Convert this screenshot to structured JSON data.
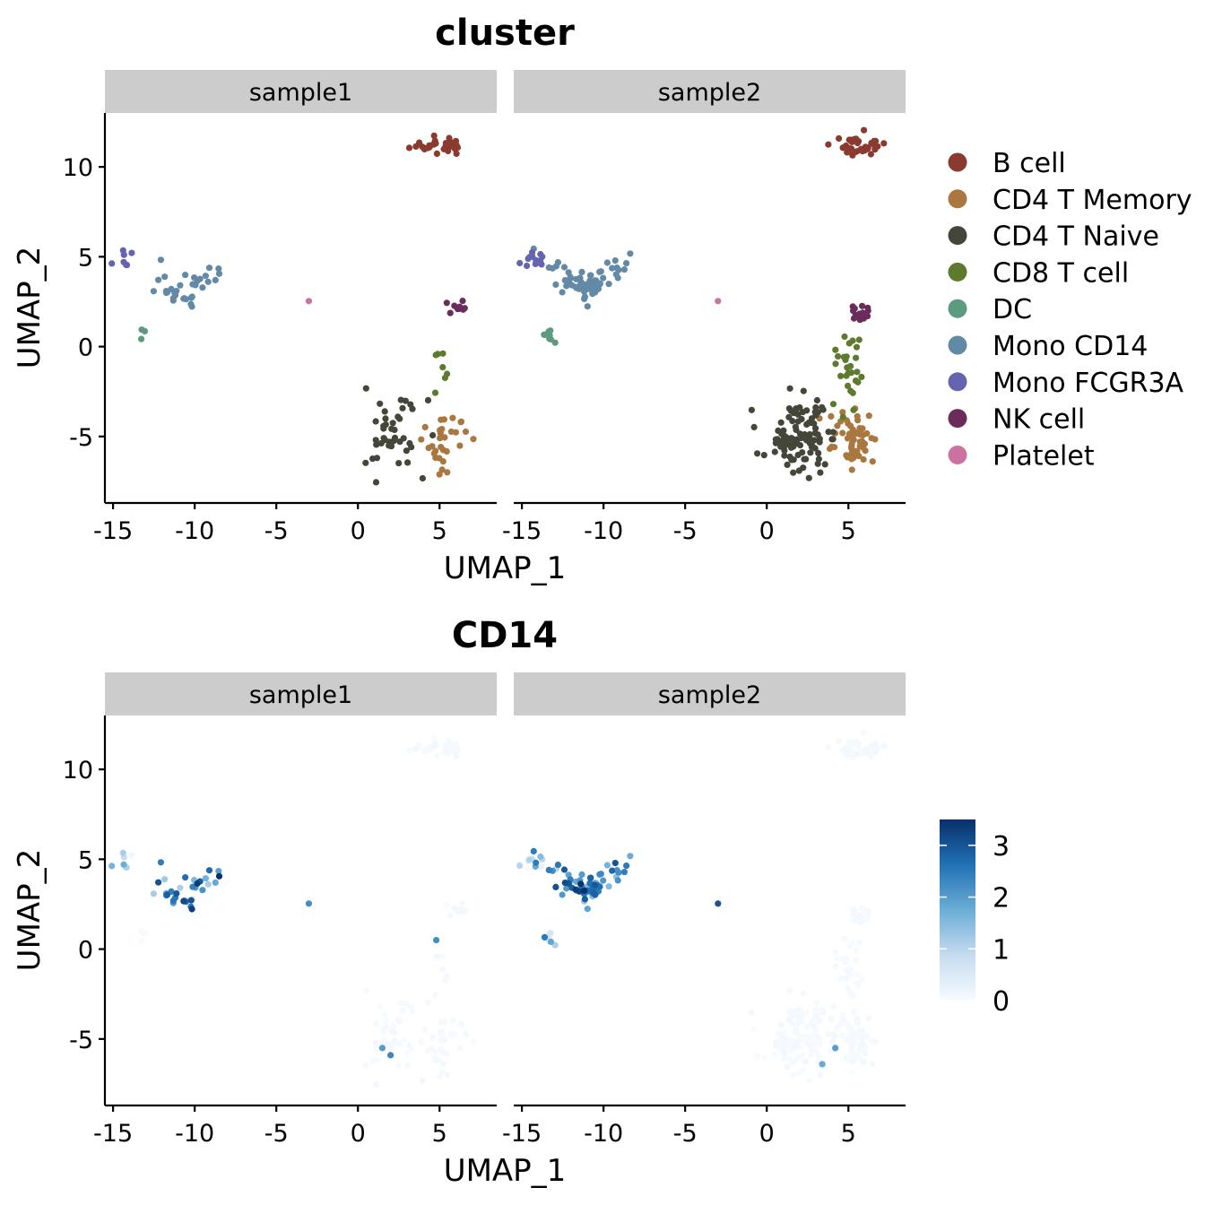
{
  "panels": [
    {
      "title": "cluster",
      "facets": [
        "sample1",
        "sample2"
      ],
      "xlabel": "UMAP_1",
      "ylabel": "UMAP_2"
    },
    {
      "title": "CD14",
      "facets": [
        "sample1",
        "sample2"
      ],
      "xlabel": "UMAP_1",
      "ylabel": "UMAP_2"
    }
  ],
  "legend": {
    "clusters": [
      {
        "name": "B cell",
        "color": "#8B3A2F"
      },
      {
        "name": "CD4 T Memory",
        "color": "#A9773F"
      },
      {
        "name": "CD4 T Naive",
        "color": "#45463A"
      },
      {
        "name": "CD8 T cell",
        "color": "#5E7A2E"
      },
      {
        "name": "DC",
        "color": "#5C9B7E"
      },
      {
        "name": "Mono CD14",
        "color": "#6289A6"
      },
      {
        "name": "Mono FCGR3A",
        "color": "#6664B0"
      },
      {
        "name": "NK cell",
        "color": "#6B2C5C"
      },
      {
        "name": "Platelet",
        "color": "#CC72A0"
      }
    ],
    "colorbar": {
      "ticks": [
        0,
        1,
        2,
        3
      ],
      "min": 0,
      "max": 3.5,
      "low_color": "#F7FBFF",
      "high_color": "#08306B"
    }
  },
  "chart_data": [
    {
      "type": "scatter",
      "title": "cluster",
      "xlabel": "UMAP_1",
      "ylabel": "UMAP_2",
      "xlim": [
        -15.5,
        8.5
      ],
      "ylim": [
        -8.7,
        13
      ],
      "xticks": [
        -15,
        -10,
        -5,
        0,
        5
      ],
      "yticks": [
        -5,
        0,
        5,
        10
      ],
      "facets": [
        "sample1",
        "sample2"
      ],
      "color_by": "cluster",
      "clusters": [
        {
          "name": "B cell",
          "centers": {
            "sample1": [
              5.0,
              11.2
            ],
            "sample2": [
              5.8,
              11.2
            ]
          },
          "spread": [
            1.2,
            0.35
          ],
          "counts": {
            "sample1": 30,
            "sample2": 36
          }
        },
        {
          "name": "CD4 T Memory",
          "centers": {
            "sample1": [
              5.2,
              -5.3
            ],
            "sample2": [
              5.2,
              -5.2
            ]
          },
          "spread": [
            1.0,
            1.0
          ],
          "counts": {
            "sample1": 30,
            "sample2": 60
          }
        },
        {
          "name": "CD4 T Naive",
          "centers": {
            "sample1": [
              2.0,
              -5.0
            ],
            "sample2": [
              2.0,
              -5.0
            ]
          },
          "spread": [
            1.3,
            1.4
          ],
          "counts": {
            "sample1": 42,
            "sample2": 100
          }
        },
        {
          "name": "CD8 T cell",
          "centers": {
            "sample1": [
              5.3,
              -1.0
            ],
            "sample2": [
              5.0,
              -1.5
            ]
          },
          "spread": [
            0.6,
            1.7
          ],
          "counts": {
            "sample1": 7,
            "sample2": 28
          }
        },
        {
          "name": "DC",
          "centers": {
            "sample1": [
              -13.2,
              0.6
            ],
            "sample2": [
              -13.5,
              0.6
            ]
          },
          "spread": [
            0.3,
            0.3
          ],
          "counts": {
            "sample1": 3,
            "sample2": 9
          }
        },
        {
          "name": "Mono CD14",
          "centers": {
            "sample1": [
              -10.8,
              3.0
            ],
            "sample2": [
              -11.0,
              3.2
            ]
          },
          "spread": [
            1.5,
            0.8
          ],
          "counts": {
            "sample1": 34,
            "sample2": 75
          }
        },
        {
          "name": "Mono FCGR3A",
          "centers": {
            "sample1": [
              -14.2,
              4.8
            ],
            "sample2": [
              -14.2,
              5.0
            ]
          },
          "spread": [
            0.5,
            0.4
          ],
          "counts": {
            "sample1": 7,
            "sample2": 12
          }
        },
        {
          "name": "NK cell",
          "centers": {
            "sample1": [
              6.2,
              2.1
            ],
            "sample2": [
              5.8,
              2.0
            ]
          },
          "spread": [
            0.5,
            0.3
          ],
          "counts": {
            "sample1": 9,
            "sample2": 16
          }
        },
        {
          "name": "Platelet",
          "centers": {
            "sample1": [
              -3.0,
              2.5
            ],
            "sample2": [
              -3.0,
              2.5
            ]
          },
          "spread": [
            0.05,
            0.05
          ],
          "counts": {
            "sample1": 1,
            "sample2": 1
          }
        }
      ]
    },
    {
      "type": "scatter",
      "title": "CD14",
      "xlabel": "UMAP_1",
      "ylabel": "UMAP_2",
      "xlim": [
        -15.5,
        8.5
      ],
      "ylim": [
        -8.7,
        13
      ],
      "xticks": [
        -15,
        -10,
        -5,
        0,
        5
      ],
      "yticks": [
        -5,
        0,
        5,
        10
      ],
      "facets": [
        "sample1",
        "sample2"
      ],
      "color_by": "CD14 expression",
      "colorbar_ticks": [
        0,
        1,
        2,
        3
      ],
      "expression_mean_by_cluster": {
        "B cell": 0,
        "CD4 T Memory": 0,
        "CD4 T Naive": 0,
        "CD8 T cell": 0,
        "DC": 0.3,
        "Mono CD14": 2.3,
        "Mono FCGR3A": 0.8,
        "NK cell": 0,
        "Platelet": 2.0
      },
      "high_outliers": [
        {
          "facet": "sample1",
          "x": 4.8,
          "y": 0.5,
          "value": 2.2
        },
        {
          "facet": "sample1",
          "x": 1.5,
          "y": -5.5,
          "value": 2.0
        },
        {
          "facet": "sample1",
          "x": 2.0,
          "y": -5.9,
          "value": 2.3
        },
        {
          "facet": "sample2",
          "x": 4.2,
          "y": -5.5,
          "value": 2.0
        },
        {
          "facet": "sample2",
          "x": 3.4,
          "y": -6.4,
          "value": 1.8
        }
      ]
    }
  ]
}
